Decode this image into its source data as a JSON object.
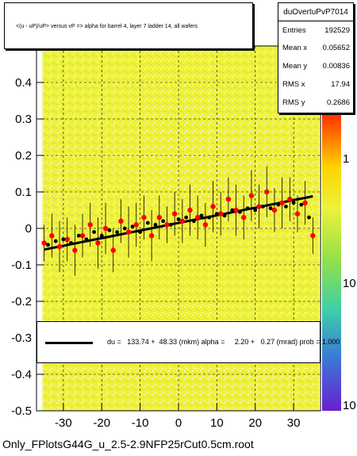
{
  "title": "<(u - uP)/uP> versus   vP => alpha for barrel 4, layer 7 ladder 14, all wafers",
  "stats": {
    "name": "duOvertuPvP7014",
    "rows": [
      {
        "key": "Entries",
        "value": "192529"
      },
      {
        "key": "Mean x",
        "value": "0.05652"
      },
      {
        "key": "Mean y",
        "value": "0.00836"
      },
      {
        "key": "RMS x",
        "value": "17.94"
      },
      {
        "key": "RMS y",
        "value": "0.2686"
      }
    ]
  },
  "fit_legend": "du =   133.74 +  48.33 (mkm) alpha =     2.20 +   0.27 (mrad) prob = 1.000",
  "footer": "Only_FPlotsG44G_u_2.5-2.9NFP25rCut0.5cm.root",
  "colors": {
    "heatmap_background": "#eef23a",
    "profile_points": "#ff0000",
    "black_points": "#000000",
    "fit_line": "#000000"
  },
  "chart_data": {
    "type": "scatter",
    "xlim": [
      -37,
      37
    ],
    "ylim": [
      -0.5,
      0.5
    ],
    "x_ticks": [
      "-30",
      "-20",
      "-10",
      "0",
      "10",
      "20",
      "30"
    ],
    "y_ticks": [
      "-0.5",
      "-0.4",
      "-0.3",
      "-0.2",
      "-0.1",
      "0",
      "0.1",
      "0.2",
      "0.3",
      "0.4"
    ],
    "colorbar_ticks": [
      "1",
      "10",
      "10"
    ],
    "grid": "dashed",
    "fit": {
      "x": [
        -35,
        35
      ],
      "y": [
        -0.058,
        0.088
      ]
    },
    "series": [
      {
        "color": "#ff0000",
        "x": [
          -35,
          -33,
          -31,
          -29,
          -27,
          -25,
          -23,
          -21,
          -19,
          -17,
          -15,
          -13,
          -11,
          -9,
          -7,
          -5,
          -3,
          -1,
          1,
          3,
          5,
          7,
          9,
          11,
          13,
          15,
          17,
          19,
          21,
          23,
          25,
          27,
          29,
          31,
          33,
          35
        ],
        "y": [
          -0.04,
          -0.02,
          -0.05,
          -0.03,
          -0.06,
          -0.02,
          0.01,
          -0.04,
          0.0,
          -0.06,
          0.02,
          -0.01,
          0.01,
          0.03,
          -0.02,
          0.03,
          0.01,
          0.04,
          0.02,
          0.05,
          0.03,
          0.01,
          0.06,
          0.04,
          0.08,
          0.05,
          0.03,
          0.09,
          0.06,
          0.1,
          0.05,
          0.07,
          0.08,
          0.04,
          0.07,
          -0.02
        ],
        "err": [
          0.05,
          0.06,
          0.07,
          0.06,
          0.07,
          0.06,
          0.06,
          0.07,
          0.07,
          0.06,
          0.06,
          0.07,
          0.06,
          0.06,
          0.07,
          0.06,
          0.05,
          0.06,
          0.06,
          0.07,
          0.06,
          0.06,
          0.07,
          0.06,
          0.06,
          0.07,
          0.06,
          0.07,
          0.06,
          0.07,
          0.06,
          0.07,
          0.06,
          0.05,
          0.06,
          0.05
        ]
      },
      {
        "color": "#000000",
        "x": [
          -34,
          -32,
          -30,
          -28,
          -26,
          -24,
          -22,
          -20,
          -18,
          -16,
          -14,
          -12,
          -10,
          -8,
          -6,
          -4,
          -2,
          0,
          2,
          4,
          6,
          8,
          10,
          12,
          14,
          16,
          18,
          20,
          22,
          24,
          26,
          28,
          30,
          32,
          34
        ],
        "y": [
          -0.045,
          -0.035,
          -0.03,
          -0.04,
          -0.02,
          -0.03,
          -0.01,
          -0.02,
          -0.005,
          -0.01,
          0.0,
          0.005,
          -0.01,
          0.015,
          0.01,
          0.02,
          0.01,
          0.025,
          0.03,
          0.02,
          0.035,
          0.03,
          0.04,
          0.035,
          0.05,
          0.045,
          0.055,
          0.05,
          0.06,
          0.055,
          0.065,
          0.06,
          0.07,
          0.065,
          0.03
        ]
      }
    ]
  }
}
